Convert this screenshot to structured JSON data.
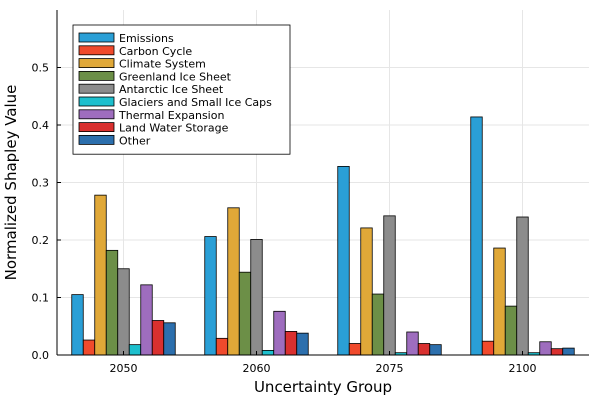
{
  "chart_data": {
    "type": "bar",
    "xlabel": "Uncertainty Group",
    "ylabel": "Normalized Shapley Value",
    "categories": [
      "2050",
      "2060",
      "2075",
      "2100"
    ],
    "ylim": [
      0,
      0.6
    ],
    "yticks": [
      0.0,
      0.1,
      0.2,
      0.3,
      0.4,
      0.5
    ],
    "ytick_labels": [
      "0.0",
      "0.1",
      "0.2",
      "0.3",
      "0.4",
      "0.5"
    ],
    "grid": true,
    "legend_position": "top-left",
    "series": [
      {
        "name": "Emissions",
        "color": "#2a9fd6",
        "values": [
          0.105,
          0.206,
          0.328,
          0.414
        ]
      },
      {
        "name": "Carbon Cycle",
        "color": "#f04a2c",
        "values": [
          0.026,
          0.029,
          0.02,
          0.024
        ]
      },
      {
        "name": "Climate System",
        "color": "#e0a838",
        "values": [
          0.278,
          0.256,
          0.221,
          0.186
        ]
      },
      {
        "name": "Greenland Ice Sheet",
        "color": "#6c8f47",
        "values": [
          0.182,
          0.144,
          0.106,
          0.085
        ]
      },
      {
        "name": "Antarctic Ice Sheet",
        "color": "#8c8c8c",
        "values": [
          0.15,
          0.201,
          0.242,
          0.24
        ]
      },
      {
        "name": "Glaciers and Small Ice Caps",
        "color": "#1dbfcd",
        "values": [
          0.018,
          0.008,
          0.004,
          0.004
        ]
      },
      {
        "name": "Thermal Expansion",
        "color": "#9e6dbe",
        "values": [
          0.122,
          0.076,
          0.04,
          0.023
        ]
      },
      {
        "name": "Land Water Storage",
        "color": "#d9302f",
        "values": [
          0.06,
          0.041,
          0.02,
          0.011
        ]
      },
      {
        "name": "Other",
        "color": "#2c6fad",
        "values": [
          0.056,
          0.038,
          0.018,
          0.012
        ]
      }
    ]
  }
}
